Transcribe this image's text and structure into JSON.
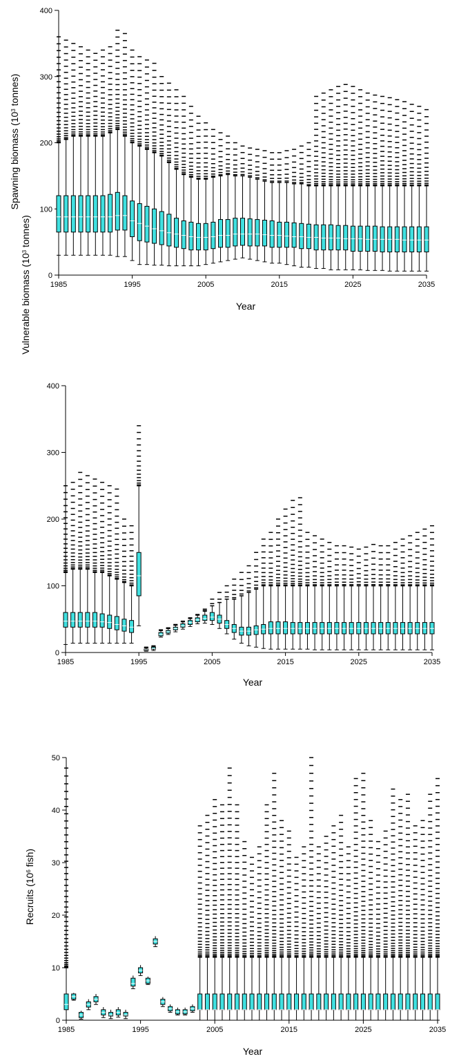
{
  "chart_data": [
    {
      "type": "box",
      "ylabel": "Spawning biomass (10",
      "ylabel_sup": "3",
      "ylabel_tail": " tonnes)",
      "xlabel": "Year",
      "xlim": [
        1985,
        2035
      ],
      "ylim": [
        0,
        400
      ],
      "xticks": [
        "1985",
        "1995",
        "2005",
        "2015",
        "2025",
        "2035"
      ],
      "yticks": [
        "0",
        "100",
        "200",
        "300",
        "400"
      ],
      "colors": {
        "box_fill": "#40e0e0",
        "edge": "#000000"
      },
      "x": [
        1985,
        1986,
        1987,
        1988,
        1989,
        1990,
        1991,
        1992,
        1993,
        1994,
        1995,
        1996,
        1997,
        1998,
        1999,
        2000,
        2001,
        2002,
        2003,
        2004,
        2005,
        2006,
        2007,
        2008,
        2009,
        2010,
        2011,
        2012,
        2013,
        2014,
        2015,
        2016,
        2017,
        2018,
        2019,
        2020,
        2021,
        2022,
        2023,
        2024,
        2025,
        2026,
        2027,
        2028,
        2029,
        2030,
        2031,
        2032,
        2033,
        2034,
        2035
      ],
      "q1": [
        65,
        65,
        65,
        65,
        65,
        65,
        65,
        65,
        68,
        68,
        58,
        52,
        50,
        48,
        46,
        44,
        42,
        40,
        38,
        38,
        38,
        40,
        42,
        42,
        44,
        45,
        44,
        44,
        44,
        42,
        42,
        42,
        42,
        40,
        40,
        38,
        38,
        38,
        38,
        38,
        36,
        36,
        36,
        36,
        35,
        35,
        35,
        35,
        35,
        35,
        35
      ],
      "median": [
        88,
        88,
        88,
        88,
        88,
        88,
        88,
        88,
        90,
        90,
        82,
        78,
        74,
        70,
        67,
        64,
        62,
        60,
        58,
        57,
        57,
        58,
        60,
        60,
        62,
        62,
        62,
        62,
        61,
        60,
        60,
        59,
        58,
        58,
        57,
        57,
        56,
        56,
        56,
        55,
        55,
        55,
        54,
        54,
        54,
        54,
        54,
        53,
        53,
        53,
        53
      ],
      "q3": [
        120,
        120,
        120,
        120,
        120,
        120,
        120,
        122,
        125,
        120,
        112,
        108,
        104,
        100,
        96,
        92,
        86,
        82,
        80,
        78,
        78,
        80,
        84,
        84,
        86,
        86,
        85,
        84,
        83,
        82,
        80,
        80,
        79,
        78,
        77,
        76,
        76,
        76,
        75,
        75,
        74,
        74,
        74,
        74,
        73,
        73,
        73,
        73,
        73,
        73,
        73
      ],
      "lo": [
        30,
        30,
        30,
        30,
        30,
        30,
        30,
        30,
        28,
        28,
        22,
        16,
        16,
        15,
        15,
        14,
        14,
        14,
        14,
        14,
        16,
        18,
        20,
        22,
        24,
        26,
        24,
        22,
        20,
        18,
        18,
        16,
        14,
        12,
        12,
        10,
        10,
        8,
        8,
        8,
        8,
        8,
        7,
        7,
        7,
        6,
        6,
        6,
        6,
        6,
        6
      ],
      "hi": [
        200,
        205,
        210,
        210,
        210,
        210,
        210,
        215,
        220,
        210,
        200,
        195,
        190,
        185,
        180,
        170,
        160,
        152,
        148,
        145,
        145,
        148,
        150,
        152,
        150,
        150,
        148,
        145,
        142,
        140,
        140,
        140,
        138,
        138,
        135,
        135,
        135,
        135,
        135,
        135,
        135,
        135,
        135,
        135,
        135,
        135,
        135,
        135,
        135,
        135,
        135
      ],
      "max": [
        360,
        355,
        350,
        345,
        340,
        335,
        340,
        345,
        370,
        365,
        340,
        330,
        325,
        320,
        300,
        290,
        280,
        270,
        255,
        240,
        230,
        220,
        215,
        210,
        200,
        195,
        192,
        190,
        188,
        185,
        185,
        188,
        190,
        195,
        200,
        270,
        275,
        280,
        285,
        288,
        285,
        280,
        275,
        272,
        270,
        268,
        265,
        262,
        258,
        255,
        250
      ]
    },
    {
      "type": "box",
      "ylabel": "Vulnerable biomass (10",
      "ylabel_sup": "3",
      "ylabel_tail": " tonnes)",
      "xlabel": "Year",
      "xlim": [
        1985,
        2035
      ],
      "ylim": [
        0,
        400
      ],
      "xticks": [
        "1985",
        "1995",
        "2005",
        "2015",
        "2025",
        "2035"
      ],
      "yticks": [
        "0",
        "100",
        "200",
        "300",
        "400"
      ],
      "colors": {
        "box_fill": "#40e0e0",
        "edge": "#000000"
      },
      "x": [
        1985,
        1986,
        1987,
        1988,
        1989,
        1990,
        1991,
        1992,
        1993,
        1994,
        1995,
        1996,
        1997,
        1998,
        1999,
        2000,
        2001,
        2002,
        2003,
        2004,
        2005,
        2006,
        2007,
        2008,
        2009,
        2010,
        2011,
        2012,
        2013,
        2014,
        2015,
        2016,
        2017,
        2018,
        2019,
        2020,
        2021,
        2022,
        2023,
        2024,
        2025,
        2026,
        2027,
        2028,
        2029,
        2030,
        2031,
        2032,
        2033,
        2034,
        2035
      ],
      "q1": [
        38,
        38,
        38,
        38,
        38,
        38,
        36,
        34,
        32,
        30,
        85,
        3,
        5,
        25,
        29,
        34,
        38,
        42,
        46,
        48,
        48,
        44,
        36,
        30,
        26,
        26,
        27,
        28,
        28,
        28,
        28,
        28,
        28,
        28,
        28,
        28,
        28,
        28,
        28,
        28,
        28,
        28,
        28,
        28,
        28,
        28,
        28,
        28,
        28,
        28,
        28
      ],
      "median": [
        47,
        47,
        47,
        47,
        47,
        46,
        45,
        42,
        40,
        38,
        115,
        4,
        6,
        27,
        31,
        36,
        40,
        45,
        49,
        51,
        53,
        50,
        42,
        36,
        32,
        32,
        34,
        35,
        36,
        36,
        36,
        36,
        36,
        36,
        36,
        36,
        36,
        36,
        36,
        36,
        36,
        36,
        36,
        36,
        36,
        36,
        36,
        36,
        36,
        36,
        36
      ],
      "q3": [
        60,
        60,
        60,
        60,
        60,
        58,
        56,
        54,
        50,
        48,
        150,
        5,
        8,
        30,
        33,
        38,
        43,
        48,
        52,
        56,
        60,
        56,
        48,
        42,
        38,
        38,
        40,
        42,
        46,
        46,
        46,
        45,
        45,
        45,
        45,
        45,
        45,
        45,
        45,
        45,
        45,
        45,
        45,
        45,
        45,
        45,
        45,
        45,
        45,
        45,
        45
      ],
      "lo": [
        12,
        14,
        14,
        14,
        14,
        14,
        14,
        14,
        14,
        14,
        40,
        2,
        3,
        23,
        27,
        31,
        35,
        39,
        43,
        44,
        42,
        36,
        28,
        20,
        14,
        10,
        8,
        6,
        5,
        5,
        5,
        5,
        5,
        5,
        4,
        4,
        4,
        4,
        4,
        4,
        4,
        4,
        4,
        4,
        4,
        4,
        4,
        4,
        4,
        4,
        4
      ],
      "hi": [
        120,
        125,
        125,
        125,
        120,
        120,
        115,
        110,
        105,
        100,
        250,
        7,
        9,
        33,
        36,
        41,
        46,
        51,
        56,
        62,
        70,
        75,
        80,
        80,
        85,
        90,
        95,
        100,
        100,
        100,
        100,
        100,
        100,
        100,
        100,
        100,
        100,
        100,
        100,
        100,
        100,
        100,
        100,
        100,
        100,
        100,
        100,
        100,
        100,
        100,
        100
      ],
      "max": [
        250,
        255,
        270,
        265,
        260,
        255,
        250,
        245,
        200,
        190,
        340,
        8,
        10,
        34,
        37,
        42,
        47,
        52,
        57,
        65,
        80,
        90,
        100,
        110,
        120,
        130,
        150,
        170,
        180,
        200,
        215,
        228,
        232,
        180,
        175,
        170,
        165,
        160,
        160,
        158,
        155,
        158,
        162,
        160,
        160,
        165,
        170,
        175,
        180,
        185,
        190
      ]
    },
    {
      "type": "box",
      "ylabel": "Recruits (10",
      "ylabel_sup": "6",
      "ylabel_tail": " fish)",
      "xlabel": "Year",
      "xlim": [
        1985,
        2035
      ],
      "ylim": [
        0,
        50
      ],
      "xticks": [
        "1985",
        "1995",
        "2005",
        "2015",
        "2025",
        "2035"
      ],
      "yticks": [
        "0",
        "10",
        "20",
        "30",
        "40",
        "50"
      ],
      "colors": {
        "box_fill": "#40e0e0",
        "edge": "#000000"
      },
      "x": [
        1985,
        1986,
        1987,
        1988,
        1989,
        1990,
        1991,
        1992,
        1993,
        1994,
        1995,
        1996,
        1997,
        1998,
        1999,
        2000,
        2001,
        2002,
        2003,
        2004,
        2005,
        2006,
        2007,
        2008,
        2009,
        2010,
        2011,
        2012,
        2013,
        2014,
        2015,
        2016,
        2017,
        2018,
        2019,
        2020,
        2021,
        2022,
        2023,
        2024,
        2025,
        2026,
        2027,
        2028,
        2029,
        2030,
        2031,
        2032,
        2033,
        2034,
        2035
      ],
      "q1": [
        2,
        4,
        0.5,
        2.5,
        3.5,
        1,
        0.8,
        1,
        0.8,
        6.5,
        9,
        7,
        14.5,
        3,
        1.8,
        1.2,
        1.2,
        1.8,
        2,
        2,
        2,
        2,
        2,
        2,
        2,
        2,
        2,
        2,
        2,
        2,
        2,
        2,
        2,
        2,
        2,
        2,
        2,
        2,
        2,
        2,
        2,
        2,
        2,
        2,
        2,
        2,
        2,
        2,
        2,
        2,
        2
      ],
      "median": [
        3,
        4.5,
        1,
        3,
        4,
        1.5,
        1,
        1.5,
        1,
        7,
        9.5,
        7.5,
        15,
        3.5,
        2.2,
        1.6,
        1.6,
        2.2,
        2,
        2,
        2,
        2,
        2,
        2,
        2,
        2,
        2,
        2,
        2,
        2,
        2,
        2,
        2,
        2,
        2,
        2,
        2,
        2,
        2,
        2,
        2,
        2,
        2,
        2,
        2,
        2,
        2,
        2,
        2,
        2,
        2
      ],
      "q3": [
        5,
        5,
        1.5,
        3.5,
        4.5,
        2,
        1.5,
        2,
        1.5,
        8,
        10,
        8,
        15.5,
        4,
        2.6,
        2,
        2,
        2.6,
        5,
        5,
        5,
        5,
        5,
        5,
        5,
        5,
        5,
        5,
        5,
        5,
        5,
        5,
        5,
        5,
        5,
        5,
        5,
        5,
        5,
        5,
        5,
        5,
        5,
        5,
        5,
        5,
        5,
        5,
        5,
        5,
        5
      ],
      "lo": [
        0,
        3.8,
        0.2,
        2,
        3,
        0.5,
        0.3,
        0.6,
        0.3,
        6,
        8.5,
        6.8,
        14,
        2.6,
        1.5,
        1,
        1,
        1.5,
        0,
        0,
        0,
        0,
        0,
        0,
        0,
        0,
        0,
        0,
        0,
        0,
        0,
        0,
        0,
        0,
        0,
        0,
        0,
        0,
        0,
        0,
        0,
        0,
        0,
        0,
        0,
        0,
        0,
        0,
        0,
        0,
        0
      ],
      "hi": [
        10,
        5.2,
        1.8,
        4,
        5,
        2.5,
        2,
        2.5,
        2,
        8.5,
        10.5,
        8.3,
        16,
        4.4,
        3,
        2.4,
        2.4,
        3,
        12,
        12,
        12,
        12,
        12,
        12,
        12,
        12,
        12,
        12,
        12,
        12,
        12,
        12,
        12,
        12,
        12,
        12,
        12,
        12,
        12,
        12,
        12,
        12,
        12,
        12,
        12,
        12,
        12,
        12,
        12,
        12,
        12
      ],
      "max": [
        48,
        5.2,
        1.8,
        4,
        5,
        2.5,
        2,
        2.5,
        2,
        8.5,
        10.5,
        8.3,
        16,
        4.4,
        3,
        2.4,
        2.4,
        3,
        37,
        39,
        42,
        41,
        48,
        41,
        34,
        31,
        33,
        41,
        47,
        38,
        36,
        31,
        33,
        50,
        33,
        35,
        37,
        39,
        33,
        46,
        47,
        38,
        34,
        36,
        44,
        42,
        43,
        37,
        38,
        43,
        46
      ]
    }
  ]
}
